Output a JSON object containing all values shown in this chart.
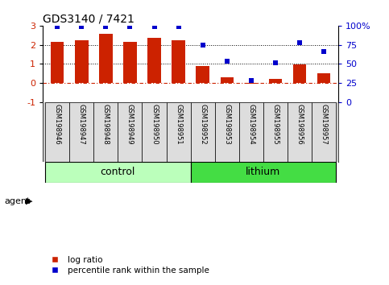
{
  "title": "GDS3140 / 7421",
  "samples": [
    "GSM198946",
    "GSM198947",
    "GSM198948",
    "GSM198949",
    "GSM198950",
    "GSM198951",
    "GSM198952",
    "GSM198953",
    "GSM198954",
    "GSM198955",
    "GSM198956",
    "GSM198957"
  ],
  "log_ratio": [
    2.15,
    2.22,
    2.58,
    2.17,
    2.38,
    2.22,
    0.9,
    0.3,
    -0.05,
    0.22,
    0.97,
    0.5
  ],
  "percentile_rank": [
    99,
    99,
    99,
    99,
    99,
    99,
    75,
    54,
    28,
    52,
    78,
    66
  ],
  "n_control": 6,
  "n_lithium": 6,
  "bar_color": "#cc2200",
  "dot_color": "#0000cc",
  "control_color": "#bbffbb",
  "lithium_color": "#44dd44",
  "ylim_left": [
    -1.0,
    3.0
  ],
  "ylim_right": [
    0,
    100
  ],
  "right_ticks": [
    0,
    25,
    50,
    75,
    100
  ],
  "right_tick_labels": [
    "0",
    "25",
    "50",
    "75",
    "100%"
  ],
  "left_ticks": [
    -1,
    0,
    1,
    2,
    3
  ],
  "legend_log_ratio": "log ratio",
  "legend_percentile": "percentile rank within the sample",
  "agent_label": "agent"
}
